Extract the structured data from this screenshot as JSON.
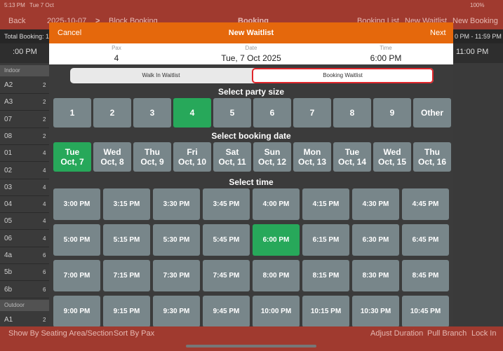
{
  "status_bar": {
    "time": "5:13 PM",
    "date": "Tue 7 Oct",
    "battery": "100%"
  },
  "nav": {
    "back": "Back",
    "date": "2025-10-07",
    "next_arrow": ">",
    "block": "Block Booking",
    "title": "Booking",
    "booking_list": "Booking List",
    "new_waitlist": "New Waitlist",
    "new_booking": "New Booking"
  },
  "summary": {
    "total": "Total Booking: 1",
    "range": "0 PM - 11:59 PM"
  },
  "timeline": {
    "left": ":00 PM",
    "right": "11:00 PM"
  },
  "sidebar": [
    {
      "section": "Indoor",
      "tables": [
        [
          "A2",
          2
        ],
        [
          "A3",
          2
        ],
        [
          "07",
          2
        ],
        [
          "08",
          2
        ],
        [
          "01",
          4
        ],
        [
          "02",
          4
        ],
        [
          "03",
          4
        ],
        [
          "04",
          4
        ],
        [
          "05",
          4
        ],
        [
          "06",
          4
        ],
        [
          "4a",
          6
        ],
        [
          "5b",
          6
        ],
        [
          "6b",
          6
        ]
      ]
    },
    {
      "section": "Outdoor",
      "tables": [
        [
          "A1",
          2
        ]
      ]
    }
  ],
  "bottom_bar": {
    "seating": "Show By Seating Area/Section",
    "sort": "Sort By Pax",
    "adjust": "Adjust Duration",
    "pull": "Pull Branch",
    "lock": "Lock In"
  },
  "modal": {
    "header": {
      "cancel": "Cancel",
      "title": "New Waitlist",
      "next": "Next"
    },
    "info": {
      "pax_label": "Pax",
      "pax": "4",
      "date_label": "Date",
      "date": "Tue, 7 Oct 2025",
      "time_label": "Time",
      "time": "6:00 PM"
    },
    "tabs": {
      "items": [
        "Walk In Waitlist",
        "Booking Waitlist"
      ],
      "selected_index": 1
    },
    "party": {
      "heading": "Select party size",
      "options": [
        "1",
        "2",
        "3",
        "4",
        "5",
        "6",
        "7",
        "8",
        "9",
        "Other"
      ],
      "selected_index": 3
    },
    "dates": {
      "heading": "Select booking date",
      "options": [
        {
          "day": "Tue",
          "date": "Oct, 7"
        },
        {
          "day": "Wed",
          "date": "Oct, 8"
        },
        {
          "day": "Thu",
          "date": "Oct, 9"
        },
        {
          "day": "Fri",
          "date": "Oct, 10"
        },
        {
          "day": "Sat",
          "date": "Oct, 11"
        },
        {
          "day": "Sun",
          "date": "Oct, 12"
        },
        {
          "day": "Mon",
          "date": "Oct, 13"
        },
        {
          "day": "Tue",
          "date": "Oct, 14"
        },
        {
          "day": "Wed",
          "date": "Oct, 15"
        },
        {
          "day": "Thu",
          "date": "Oct, 16"
        }
      ],
      "selected_index": 0
    },
    "times": {
      "heading": "Select time",
      "options": [
        "3:00 PM",
        "3:15 PM",
        "3:30 PM",
        "3:45 PM",
        "4:00 PM",
        "4:15 PM",
        "4:30 PM",
        "4:45 PM",
        "5:00 PM",
        "5:15 PM",
        "5:30 PM",
        "5:45 PM",
        "6:00 PM",
        "6:15 PM",
        "6:30 PM",
        "6:45 PM",
        "7:00 PM",
        "7:15 PM",
        "7:30 PM",
        "7:45 PM",
        "8:00 PM",
        "8:15 PM",
        "8:30 PM",
        "8:45 PM",
        "9:00 PM",
        "9:15 PM",
        "9:30 PM",
        "9:45 PM",
        "10:00 PM",
        "10:15 PM",
        "10:30 PM",
        "10:45 PM"
      ],
      "selected_index": 12
    }
  }
}
